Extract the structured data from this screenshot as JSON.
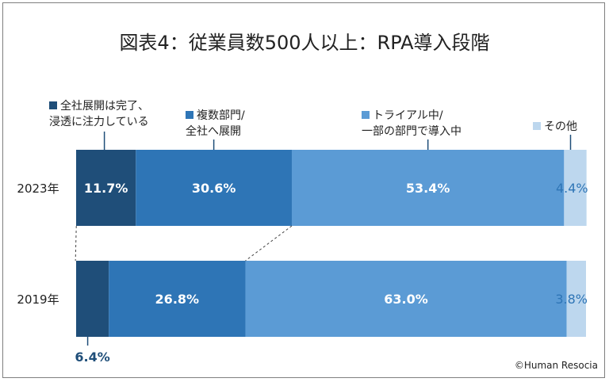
{
  "chart_data": {
    "type": "bar",
    "orientation": "horizontal",
    "stacked": true,
    "title": "図表4：従業員数500人以上：RPA導入段階",
    "categories": [
      "2023年",
      "2019年"
    ],
    "series": [
      {
        "name": "全社展開は完了、浸透に注力している",
        "name_lines": [
          "全社展開は完了、",
          "浸透に注力している"
        ],
        "values": [
          11.7,
          6.4
        ],
        "color": "#1f4e79"
      },
      {
        "name": "複数部門/全社へ展開",
        "name_lines": [
          "複数部門/",
          "全社へ展開"
        ],
        "values": [
          30.6,
          26.8
        ],
        "color": "#2e75b6"
      },
      {
        "name": "トライアル中/一部の部門で導入中",
        "name_lines": [
          "トライアル中/",
          "一部の部門で導入中"
        ],
        "values": [
          53.4,
          63.0
        ],
        "color": "#5b9bd5"
      },
      {
        "name": "その他",
        "name_lines": [
          "その他"
        ],
        "values": [
          4.4,
          3.8
        ],
        "color": "#bdd7ee"
      }
    ],
    "data_labels": [
      [
        "11.7%",
        "30.6%",
        "53.4%",
        "4.4%"
      ],
      [
        "6.4%",
        "26.8%",
        "63.0%",
        "3.8%"
      ]
    ],
    "xlim": [
      0,
      100
    ],
    "legend": "top",
    "grid": false
  },
  "credit": "©Human Resocia"
}
